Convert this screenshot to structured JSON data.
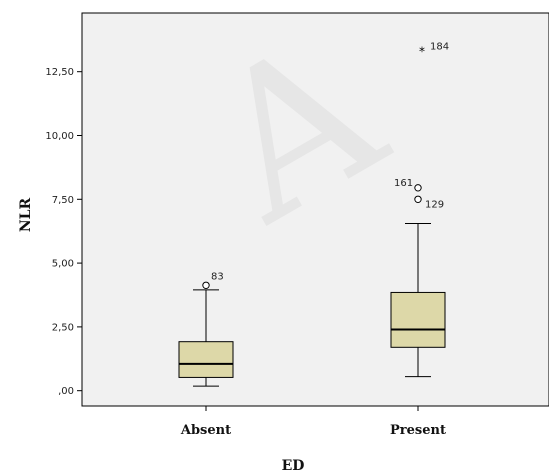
{
  "watermark": "A",
  "chart_data": {
    "type": "box",
    "xlabel": "ED",
    "ylabel": "NLR",
    "ylim": [
      -0.6,
      14.8
    ],
    "yticks": [
      {
        "value": 0,
        "label": ",00"
      },
      {
        "value": 2.5,
        "label": "2,50"
      },
      {
        "value": 5,
        "label": "5,00"
      },
      {
        "value": 7.5,
        "label": "7,50"
      },
      {
        "value": 10,
        "label": "10,00"
      },
      {
        "value": 12.5,
        "label": "12,50"
      }
    ],
    "grid": false,
    "colors": {
      "plot_bg": "#f1f1f1",
      "box_fill": "#ddd8a8",
      "line": "#000000"
    },
    "boxes": [
      {
        "category": "Absent",
        "whisker_low": 0.18,
        "q1": 0.52,
        "median": 1.05,
        "q3": 1.92,
        "whisker_high": 3.95,
        "outliers": [
          {
            "value": 4.13,
            "label": "83",
            "marker": "circle"
          }
        ]
      },
      {
        "category": "Present",
        "whisker_low": 0.55,
        "q1": 1.7,
        "median": 2.4,
        "q3": 3.85,
        "whisker_high": 6.55,
        "outliers": [
          {
            "value": 7.95,
            "label": "161",
            "marker": "circle"
          },
          {
            "value": 7.5,
            "label": "129",
            "marker": "circle"
          },
          {
            "value": 13.3,
            "label": "184",
            "marker": "star"
          }
        ]
      }
    ]
  }
}
